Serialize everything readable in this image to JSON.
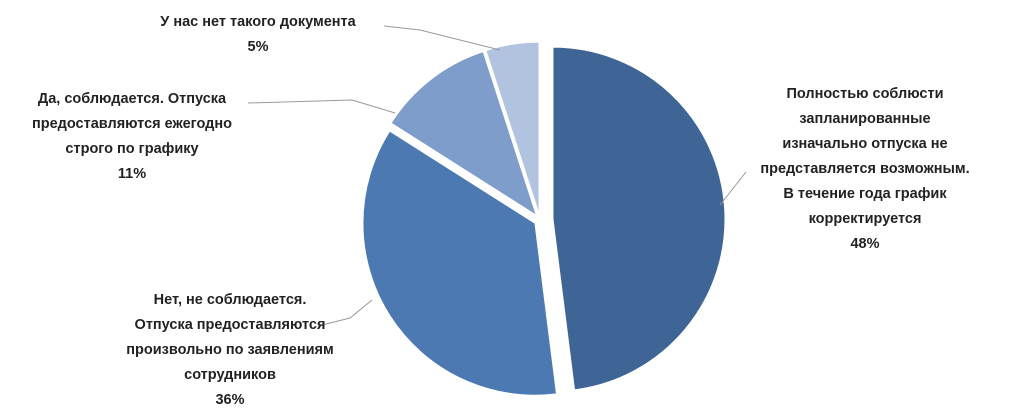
{
  "chart_data": {
    "type": "pie",
    "title": "",
    "slices": [
      {
        "label_lines": [
          "Полностью соблюсти",
          "запланированные",
          "изначально отпуска не",
          "представляется возможным.",
          "В течение года график",
          "корректируется"
        ],
        "pct_label": "48%",
        "value": 48,
        "color": "#3f6496"
      },
      {
        "label_lines": [
          "Нет, не соблюдается.",
          "Отпуска предоставляются",
          "произвольно по заявлениям",
          "сотрудников"
        ],
        "pct_label": "36%",
        "value": 36,
        "color": "#4d79b3"
      },
      {
        "label_lines": [
          "Да, соблюдается. Отпуска",
          "предоставляются ежегодно",
          "строго по графику"
        ],
        "pct_label": "11%",
        "value": 11,
        "color": "#7e9dcb"
      },
      {
        "label_lines": [
          "У нас нет такого документа"
        ],
        "pct_label": "5%",
        "value": 5,
        "color": "#b2c3e0"
      }
    ]
  }
}
